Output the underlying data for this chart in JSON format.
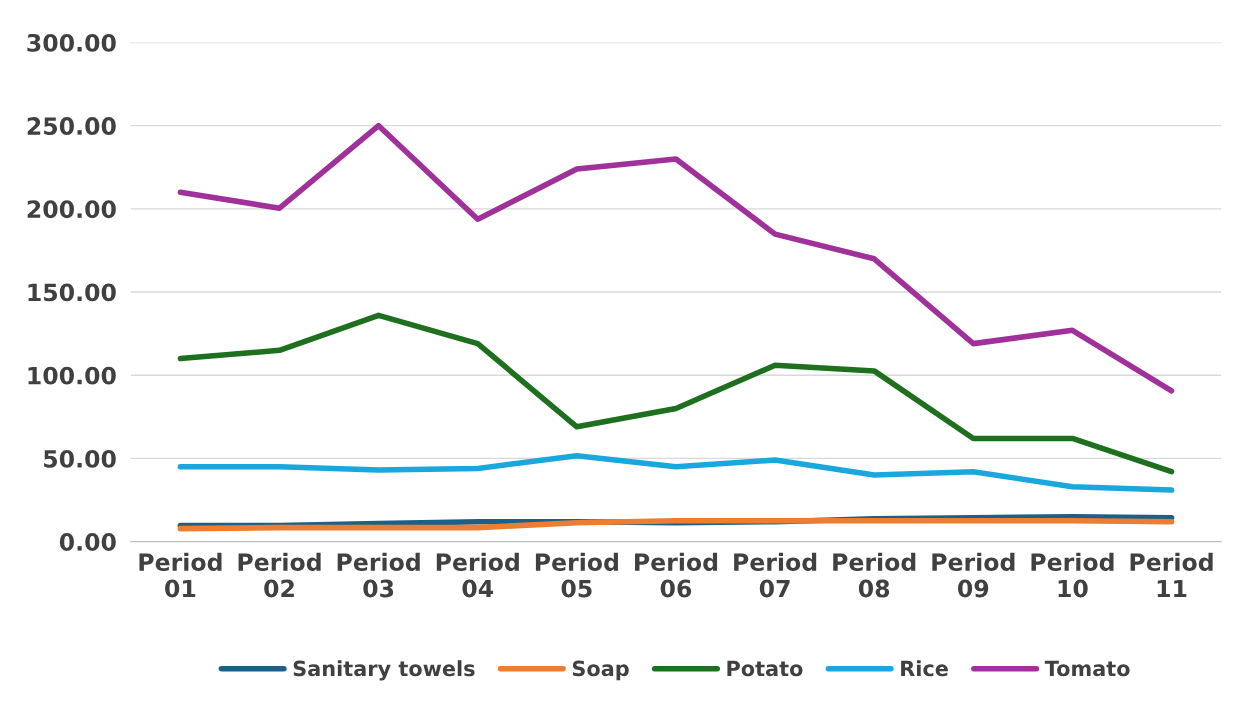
{
  "chart_data": {
    "type": "line",
    "categories": [
      "Period\n01",
      "Period\n02",
      "Period\n03",
      "Period\n04",
      "Period\n05",
      "Period\n06",
      "Period\n07",
      "Period\n08",
      "Period\n09",
      "Period\n10",
      "Period\n11"
    ],
    "series": [
      {
        "name": "Sanitary towels",
        "color": "#1f5f86",
        "values": [
          9.6,
          9.6,
          10.8,
          12,
          12,
          11.4,
          12,
          13.8,
          14.4,
          15,
          14.4
        ]
      },
      {
        "name": "Soap",
        "color": "#ed7d31",
        "values": [
          7.8,
          8.4,
          8.4,
          8.4,
          11.4,
          12.6,
          12.6,
          12.6,
          12.6,
          12.6,
          12
        ]
      },
      {
        "name": "Potato",
        "color": "#1e6f1e",
        "values": [
          110,
          115,
          136,
          119,
          69,
          80,
          106,
          102.6,
          62,
          62,
          42
        ]
      },
      {
        "name": "Rice",
        "color": "#1aa7de",
        "values": [
          45,
          45,
          43,
          44,
          51.6,
          45,
          49,
          40,
          42,
          33,
          31
        ]
      },
      {
        "name": "Tomato",
        "color": "#a0309a",
        "values": [
          210,
          200.4,
          250,
          193.8,
          224,
          230,
          184.8,
          170,
          119,
          127,
          90.6
        ]
      }
    ],
    "ylim": [
      0,
      300
    ],
    "yticks": [
      {
        "value": 0,
        "label": "0.00"
      },
      {
        "value": 50,
        "label": "50.00"
      },
      {
        "value": 100,
        "label": "100.00"
      },
      {
        "value": 150,
        "label": "150.00"
      },
      {
        "value": 200,
        "label": "200.00"
      },
      {
        "value": 250,
        "label": "250.00"
      },
      {
        "value": 300,
        "label": "300.00"
      }
    ],
    "grid": "y",
    "legend": "bottom",
    "marker": "none",
    "line_style": "solid"
  }
}
